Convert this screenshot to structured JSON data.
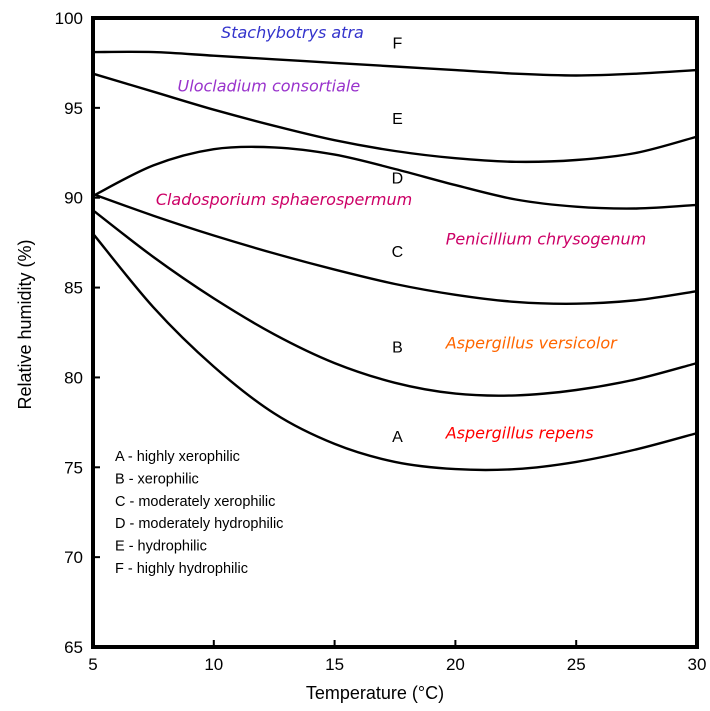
{
  "chart_data": {
    "type": "line",
    "xlabel": "Temperature   (°C)",
    "ylabel": "Relative humidity (%)",
    "xlim": [
      5,
      30
    ],
    "ylim": [
      65,
      100
    ],
    "xticks": [
      5,
      10,
      15,
      20,
      25,
      30
    ],
    "yticks": [
      65,
      70,
      75,
      80,
      85,
      90,
      95,
      100
    ],
    "grid": false,
    "series": [
      {
        "name": "A",
        "x": [
          5,
          7.5,
          10,
          12.5,
          15,
          17.5,
          20,
          22.5,
          25,
          27.5,
          30
        ],
        "y": [
          88.0,
          83.9,
          80.6,
          78.0,
          76.3,
          75.3,
          74.9,
          74.9,
          75.3,
          76.0,
          76.9
        ]
      },
      {
        "name": "B",
        "x": [
          5,
          7.5,
          10,
          12.5,
          15,
          17.5,
          20,
          22.5,
          25,
          27.5,
          30
        ],
        "y": [
          89.3,
          86.7,
          84.4,
          82.4,
          80.8,
          79.7,
          79.1,
          79.0,
          79.3,
          79.9,
          80.8
        ]
      },
      {
        "name": "C",
        "x": [
          5,
          7.5,
          10,
          12.5,
          15,
          17.5,
          20,
          22.5,
          25,
          27.5,
          30
        ],
        "y": [
          90.2,
          89.0,
          87.9,
          86.9,
          86.0,
          85.2,
          84.6,
          84.2,
          84.1,
          84.3,
          84.8
        ]
      },
      {
        "name": "D",
        "x": [
          5,
          7.5,
          10,
          12.5,
          15,
          17.5,
          20,
          22.5,
          25,
          27.5,
          30
        ],
        "y": [
          90.1,
          91.8,
          92.7,
          92.8,
          92.4,
          91.6,
          90.7,
          89.9,
          89.5,
          89.4,
          89.6
        ]
      },
      {
        "name": "E",
        "x": [
          5,
          7.5,
          10,
          12.5,
          15,
          17.5,
          20,
          22.5,
          25,
          27.5,
          30
        ],
        "y": [
          96.9,
          95.9,
          94.9,
          94.0,
          93.2,
          92.6,
          92.2,
          92.0,
          92.1,
          92.5,
          93.4
        ]
      },
      {
        "name": "F",
        "x": [
          5,
          7.5,
          10,
          12.5,
          15,
          17.5,
          20,
          22.5,
          25,
          27.5,
          30
        ],
        "y": [
          98.1,
          98.1,
          97.9,
          97.7,
          97.5,
          97.3,
          97.1,
          96.9,
          96.8,
          96.9,
          97.1
        ]
      }
    ],
    "curve_labels": [
      {
        "text": "F",
        "x": 17.6,
        "y": 98.3
      },
      {
        "text": "E",
        "x": 17.6,
        "y": 94.1
      },
      {
        "text": "D",
        "x": 17.6,
        "y": 90.8
      },
      {
        "text": "C",
        "x": 17.6,
        "y": 86.7
      },
      {
        "text": "B",
        "x": 17.6,
        "y": 81.4
      },
      {
        "text": "A",
        "x": 17.6,
        "y": 76.4
      }
    ],
    "annotations": [
      {
        "text": "Stachybotrys atra",
        "x": 10.3,
        "y": 98.9,
        "color": "#3333CC"
      },
      {
        "text": "Ulocladium consortiale",
        "x": 8.5,
        "y": 95.9,
        "color": "#9933CC"
      },
      {
        "text": "Cladosporium sphaerospermum",
        "x": 7.6,
        "y": 89.6,
        "color": "#CC0066"
      },
      {
        "text": "Penicillium chrysogenum",
        "x": 19.6,
        "y": 87.4,
        "color": "#CC0066"
      },
      {
        "text": "Aspergillus versicolor",
        "x": 19.6,
        "y": 81.6,
        "color": "#FF6600"
      },
      {
        "text": "Aspergillus repens",
        "x": 19.6,
        "y": 76.6,
        "color": "#FF0000"
      }
    ],
    "legend": {
      "placement": "bottom-left",
      "entries": [
        "A - highly xerophilic",
        "B - xerophilic",
        "C - moderately xerophilic",
        "D - moderately hydrophilic",
        "E - hydrophilic",
        "F - highly hydrophilic"
      ]
    }
  }
}
